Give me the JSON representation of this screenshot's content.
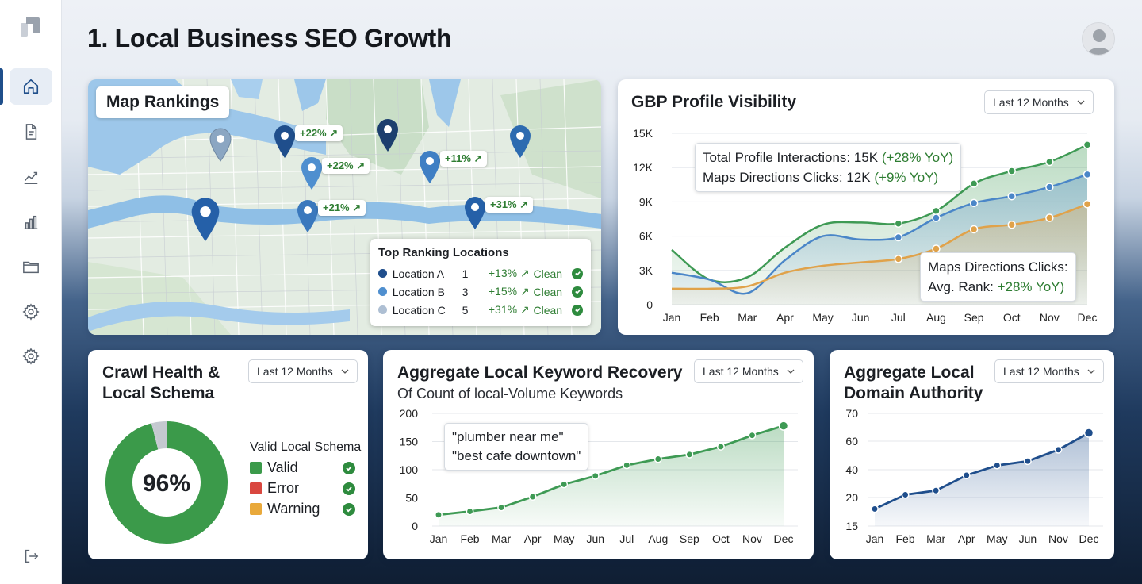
{
  "page": {
    "title": "1. Local Business SEO Growth"
  },
  "sidebar": {
    "items": [
      {
        "name": "home-icon",
        "active": true
      },
      {
        "name": "document-icon"
      },
      {
        "name": "trend-icon"
      },
      {
        "name": "bar-chart-icon"
      },
      {
        "name": "folder-icon"
      },
      {
        "name": "settings-icon"
      },
      {
        "name": "settings-icon"
      }
    ],
    "bottom": {
      "name": "logout-icon"
    }
  },
  "map": {
    "title": "Map Rankings",
    "tags": [
      "+22%",
      "+22%",
      "+11%",
      "+21%",
      "+31%"
    ],
    "top_ranking": {
      "title": "Top Ranking Locations",
      "rows": [
        {
          "name": "Location A",
          "rank": "1",
          "change": "+13%",
          "status": "Clean",
          "color": "#1f4e8c"
        },
        {
          "name": "Location B",
          "rank": "3",
          "change": "+15%",
          "status": "Clean",
          "color": "#4f8fcf"
        },
        {
          "name": "Location C",
          "rank": "5",
          "change": "+31%",
          "status": "Clean",
          "color": "#aebfd3"
        }
      ]
    }
  },
  "gbp": {
    "title": "GBP Profile Visibility",
    "range": "Last 12 Months",
    "annotation_top": {
      "line1_label": "Total Profile Interactions: 15K",
      "line1_change": "(+28% YoY)",
      "line2_label": "Maps Directions Clicks: 12K",
      "line2_change": "(+9% YoY)"
    },
    "annotation_bottom": {
      "line1": "Maps Directions Clicks:",
      "line2_label": "Avg. Rank:",
      "line2_change": "+28% YoY)"
    }
  },
  "crawl": {
    "title_line1": "Crawl Health &",
    "title_line2": "Local Schema",
    "range": "Last 12 Months",
    "center_label": "96%",
    "legend_title": "Valid Local Schema",
    "legend": [
      {
        "label": "Valid",
        "color": "#3b9a4a"
      },
      {
        "label": "Error",
        "color": "#d9473f"
      },
      {
        "label": "Warning",
        "color": "#e9a93b"
      }
    ]
  },
  "keywords": {
    "title": "Aggregate Local Keyword Recovery",
    "subtitle": "Of Count of local-Volume Keywords",
    "range": "Last 12 Months",
    "annotation_line1": "\"plumber near me\"",
    "annotation_line2": "\"best cafe downtown\""
  },
  "domain": {
    "title_line1": "Aggregate Local",
    "title_line2": "Domain Authority",
    "range": "Last 12 Months"
  },
  "colors": {
    "green": "#3e9a54",
    "blue": "#4a86c8",
    "orange": "#e0a24a",
    "navy": "#1f4e8c"
  },
  "chart_data": [
    {
      "id": "gbp",
      "type": "line",
      "title": "GBP Profile Visibility",
      "categories": [
        "Jan",
        "Feb",
        "Mar",
        "Apr",
        "May",
        "Jun",
        "Jul",
        "Aug",
        "Sep",
        "Oct",
        "Nov",
        "Dec"
      ],
      "yticks": [
        "0",
        "3K",
        "6K",
        "9K",
        "12K",
        "15K"
      ],
      "ylim": [
        0,
        15000
      ],
      "series": [
        {
          "values": [
            4800,
            2200,
            2400,
            5000,
            7000,
            7200,
            7100,
            8200,
            10600,
            11700,
            12500,
            14000
          ]
        },
        {
          "values": [
            2800,
            2200,
            1000,
            3900,
            6000,
            5700,
            5900,
            7600,
            8900,
            9500,
            10300,
            11400
          ]
        },
        {
          "values": [
            1400,
            1400,
            1600,
            2800,
            3400,
            3700,
            4000,
            4900,
            6600,
            7000,
            7600,
            8800
          ]
        }
      ]
    },
    {
      "id": "crawl",
      "type": "pie",
      "title": "Crawl Health & Local Schema",
      "labels": [
        "Valid",
        "Error",
        "Warning"
      ],
      "values": [
        96,
        0.5,
        3.5
      ]
    },
    {
      "id": "keywords",
      "type": "area",
      "title": "Aggregate Local Keyword Recovery",
      "categories": [
        "Jan",
        "Feb",
        "Mar",
        "Apr",
        "May",
        "Jun",
        "Jul",
        "Aug",
        "Sep",
        "Oct",
        "Nov",
        "Dec"
      ],
      "yticks": [
        "0",
        "50",
        "100",
        "150",
        "200"
      ],
      "ylim": [
        0,
        200
      ],
      "values": [
        20,
        26,
        33,
        52,
        74,
        89,
        108,
        119,
        127,
        141,
        161,
        178
      ]
    },
    {
      "id": "domain",
      "type": "area",
      "title": "Aggregate Local Domain Authority",
      "categories": [
        "Jan",
        "Feb",
        "Mar",
        "Apr",
        "May",
        "Jun",
        "Nov",
        "Dec"
      ],
      "yticks": [
        "15",
        "20",
        "40",
        "60",
        "70"
      ],
      "values": [
        18,
        22,
        25,
        36,
        43,
        46,
        54,
        63
      ]
    }
  ]
}
